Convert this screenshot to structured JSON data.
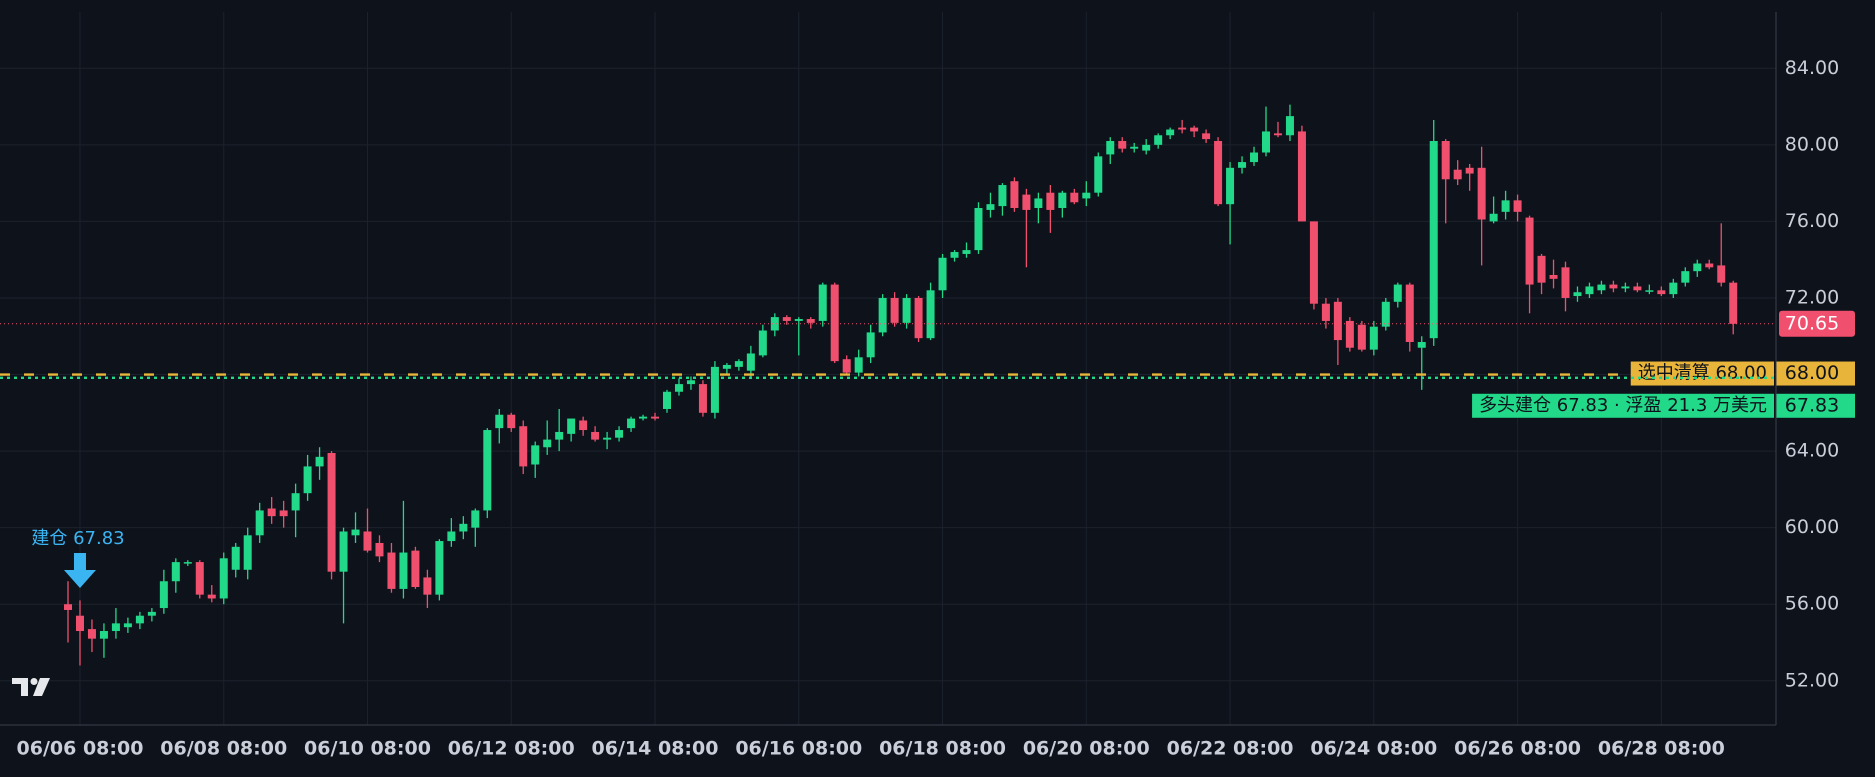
{
  "chart_data": {
    "type": "candlestick",
    "up_color": "#22d98a",
    "down_color": "#f0506e",
    "grid": true,
    "ylim": [
      49.69,
      86.94
    ],
    "yticks": [
      {
        "value": 52,
        "label": "52.00"
      },
      {
        "value": 56,
        "label": "56.00"
      },
      {
        "value": 60,
        "label": "60.00"
      },
      {
        "value": 64,
        "label": "64.00"
      },
      {
        "value": 68,
        "label": "68.00"
      },
      {
        "value": 72,
        "label": "72.00"
      },
      {
        "value": 76,
        "label": "76.00"
      },
      {
        "value": 80,
        "label": "80.00"
      },
      {
        "value": 84,
        "label": "84.00"
      }
    ],
    "categories": [
      null,
      "06/06 08:00",
      null,
      null,
      null,
      null,
      null,
      null,
      null,
      null,
      null,
      null,
      null,
      "06/08 08:00",
      null,
      null,
      null,
      null,
      null,
      null,
      null,
      null,
      null,
      null,
      null,
      "06/10 08:00",
      null,
      null,
      null,
      null,
      null,
      null,
      null,
      null,
      null,
      null,
      null,
      "06/12 08:00",
      null,
      null,
      null,
      null,
      null,
      null,
      null,
      null,
      null,
      null,
      null,
      "06/14 08:00",
      null,
      null,
      null,
      null,
      null,
      null,
      null,
      null,
      null,
      null,
      null,
      "06/16 08:00",
      null,
      null,
      null,
      null,
      null,
      null,
      null,
      null,
      null,
      null,
      null,
      "06/18 08:00",
      null,
      null,
      null,
      null,
      null,
      null,
      null,
      null,
      null,
      null,
      null,
      "06/20 08:00",
      null,
      null,
      null,
      null,
      null,
      null,
      null,
      null,
      null,
      null,
      null,
      "06/22 08:00",
      null,
      null,
      null,
      null,
      null,
      null,
      null,
      null,
      null,
      null,
      null,
      "06/24 08:00",
      null,
      null,
      null,
      null,
      null,
      null,
      null,
      null,
      null,
      null,
      null,
      "06/26 08:00",
      null,
      null,
      null,
      null,
      null,
      null,
      null,
      null,
      null,
      null,
      null,
      "06/28 08:00",
      null,
      null,
      null,
      null,
      null,
      null
    ],
    "ohlc": [
      [
        56.0,
        57.2,
        54.0,
        55.7
      ],
      [
        55.4,
        56.2,
        52.8,
        54.6
      ],
      [
        54.7,
        55.2,
        53.5,
        54.2
      ],
      [
        54.2,
        55.0,
        53.2,
        54.6
      ],
      [
        54.6,
        55.8,
        54.2,
        55.0
      ],
      [
        54.8,
        55.3,
        54.5,
        55.0
      ],
      [
        55.0,
        55.6,
        54.7,
        55.4
      ],
      [
        55.4,
        55.8,
        55.1,
        55.6
      ],
      [
        55.8,
        57.8,
        55.5,
        57.2
      ],
      [
        57.2,
        58.4,
        56.6,
        58.2
      ],
      [
        58.2,
        58.3,
        58.0,
        58.2
      ],
      [
        58.2,
        58.3,
        56.3,
        56.5
      ],
      [
        56.5,
        57.0,
        56.1,
        56.3
      ],
      [
        56.3,
        58.7,
        56.0,
        58.4
      ],
      [
        57.8,
        59.2,
        57.4,
        59.0
      ],
      [
        57.8,
        60.0,
        57.3,
        59.6
      ],
      [
        59.6,
        61.3,
        59.2,
        60.9
      ],
      [
        61.0,
        61.6,
        60.2,
        60.6
      ],
      [
        60.9,
        61.4,
        60.0,
        60.6
      ],
      [
        60.9,
        62.3,
        59.5,
        61.8
      ],
      [
        61.8,
        63.8,
        61.4,
        63.2
      ],
      [
        63.2,
        64.2,
        62.5,
        63.7
      ],
      [
        63.9,
        64.0,
        57.3,
        57.7
      ],
      [
        57.7,
        60.0,
        55.0,
        59.8
      ],
      [
        59.6,
        60.8,
        59.2,
        59.9
      ],
      [
        59.8,
        61.0,
        58.7,
        58.8
      ],
      [
        59.2,
        59.6,
        58.2,
        58.5
      ],
      [
        58.7,
        59.2,
        56.6,
        56.8
      ],
      [
        56.8,
        61.4,
        56.3,
        58.7
      ],
      [
        58.8,
        59.0,
        56.8,
        56.9
      ],
      [
        57.4,
        57.8,
        55.8,
        56.5
      ],
      [
        56.5,
        59.4,
        56.2,
        59.3
      ],
      [
        59.3,
        60.5,
        59.0,
        59.8
      ],
      [
        59.8,
        60.6,
        59.4,
        60.2
      ],
      [
        60.0,
        61.0,
        59.0,
        60.9
      ],
      [
        60.9,
        65.2,
        60.5,
        65.1
      ],
      [
        65.2,
        66.2,
        64.4,
        65.9
      ],
      [
        65.9,
        66.0,
        65.0,
        65.2
      ],
      [
        65.3,
        65.6,
        62.8,
        63.2
      ],
      [
        63.3,
        64.5,
        62.6,
        64.3
      ],
      [
        64.2,
        65.6,
        63.8,
        64.6
      ],
      [
        64.6,
        66.2,
        64.0,
        65.0
      ],
      [
        64.9,
        65.7,
        64.5,
        65.7
      ],
      [
        65.6,
        65.8,
        64.8,
        65.1
      ],
      [
        65.0,
        65.3,
        64.5,
        64.6
      ],
      [
        64.6,
        65.0,
        64.1,
        64.7
      ],
      [
        64.7,
        65.3,
        64.5,
        65.1
      ],
      [
        65.2,
        65.8,
        65.0,
        65.7
      ],
      [
        65.7,
        65.9,
        65.6,
        65.8
      ],
      [
        65.8,
        66.0,
        65.6,
        65.7
      ],
      [
        66.2,
        67.2,
        66.0,
        67.1
      ],
      [
        67.1,
        67.8,
        66.9,
        67.5
      ],
      [
        67.5,
        67.9,
        67.2,
        67.7
      ],
      [
        67.5,
        67.7,
        65.8,
        66.0
      ],
      [
        66.0,
        68.7,
        65.7,
        68.4
      ],
      [
        68.3,
        68.6,
        68.0,
        68.5
      ],
      [
        68.4,
        68.8,
        68.2,
        68.7
      ],
      [
        68.2,
        69.5,
        67.8,
        69.1
      ],
      [
        69.0,
        70.6,
        68.9,
        70.3
      ],
      [
        70.3,
        71.2,
        70.0,
        71.0
      ],
      [
        71.0,
        71.1,
        70.6,
        70.8
      ],
      [
        70.8,
        71.0,
        69.0,
        70.9
      ],
      [
        70.9,
        71.0,
        70.4,
        70.7
      ],
      [
        70.8,
        72.8,
        70.5,
        72.7
      ],
      [
        72.7,
        72.8,
        68.6,
        68.7
      ],
      [
        68.8,
        69.0,
        68.0,
        68.1
      ],
      [
        68.1,
        69.3,
        67.9,
        68.9
      ],
      [
        68.9,
        70.6,
        68.6,
        70.2
      ],
      [
        70.2,
        72.2,
        70.0,
        72.0
      ],
      [
        72.0,
        72.3,
        70.5,
        70.7
      ],
      [
        70.7,
        72.2,
        70.4,
        72.0
      ],
      [
        72.0,
        72.1,
        69.7,
        69.9
      ],
      [
        69.9,
        72.8,
        69.8,
        72.4
      ],
      [
        72.4,
        74.3,
        72.0,
        74.1
      ],
      [
        74.1,
        74.5,
        73.9,
        74.4
      ],
      [
        74.3,
        74.9,
        74.1,
        74.5
      ],
      [
        74.5,
        77.0,
        74.3,
        76.7
      ],
      [
        76.6,
        77.5,
        76.2,
        76.9
      ],
      [
        76.8,
        78.0,
        76.3,
        77.9
      ],
      [
        78.1,
        78.3,
        76.5,
        76.7
      ],
      [
        77.4,
        77.7,
        73.6,
        76.6
      ],
      [
        76.7,
        77.5,
        75.9,
        77.2
      ],
      [
        77.5,
        77.9,
        75.4,
        76.6
      ],
      [
        76.7,
        77.6,
        76.2,
        77.5
      ],
      [
        77.5,
        77.7,
        76.9,
        77.0
      ],
      [
        77.2,
        78.1,
        76.8,
        77.5
      ],
      [
        77.5,
        79.6,
        77.3,
        79.4
      ],
      [
        79.5,
        80.4,
        79.0,
        80.2
      ],
      [
        80.2,
        80.4,
        79.6,
        79.8
      ],
      [
        79.8,
        80.1,
        79.6,
        79.9
      ],
      [
        79.7,
        80.3,
        79.5,
        80.0
      ],
      [
        80.0,
        80.6,
        79.8,
        80.5
      ],
      [
        80.5,
        80.9,
        80.3,
        80.8
      ],
      [
        80.9,
        81.3,
        80.6,
        80.8
      ],
      [
        80.9,
        81.0,
        80.4,
        80.7
      ],
      [
        80.6,
        80.8,
        80.1,
        80.3
      ],
      [
        80.2,
        80.4,
        76.8,
        76.9
      ],
      [
        76.9,
        79.1,
        74.8,
        78.8
      ],
      [
        78.8,
        79.4,
        78.5,
        79.1
      ],
      [
        79.1,
        79.9,
        78.9,
        79.6
      ],
      [
        79.6,
        82.0,
        79.4,
        80.7
      ],
      [
        80.6,
        81.2,
        80.4,
        80.5
      ],
      [
        80.5,
        82.1,
        80.2,
        81.5
      ],
      [
        80.7,
        81.0,
        76.0,
        76.0
      ],
      [
        76.0,
        76.0,
        71.4,
        71.7
      ],
      [
        71.7,
        72.0,
        70.4,
        70.8
      ],
      [
        71.8,
        72.0,
        68.5,
        69.8
      ],
      [
        70.8,
        71.0,
        69.2,
        69.4
      ],
      [
        70.6,
        70.8,
        69.2,
        69.3
      ],
      [
        69.3,
        70.8,
        69.0,
        70.5
      ],
      [
        70.5,
        72.0,
        70.3,
        71.8
      ],
      [
        71.8,
        72.8,
        71.5,
        72.7
      ],
      [
        72.7,
        72.8,
        69.2,
        69.7
      ],
      [
        69.4,
        70.0,
        67.2,
        69.7
      ],
      [
        69.9,
        81.3,
        69.5,
        80.2
      ],
      [
        80.2,
        80.3,
        75.9,
        78.2
      ],
      [
        78.7,
        79.2,
        77.9,
        78.2
      ],
      [
        78.8,
        79.0,
        77.6,
        78.5
      ],
      [
        78.8,
        79.9,
        73.7,
        76.1
      ],
      [
        76.0,
        77.3,
        75.9,
        76.4
      ],
      [
        76.5,
        77.6,
        76.1,
        77.1
      ],
      [
        77.1,
        77.4,
        76.0,
        76.5
      ],
      [
        76.2,
        76.3,
        71.2,
        72.7
      ],
      [
        74.2,
        74.3,
        72.2,
        72.8
      ],
      [
        73.2,
        74.0,
        72.5,
        73.0
      ],
      [
        73.6,
        73.9,
        71.3,
        72.0
      ],
      [
        72.1,
        72.6,
        71.8,
        72.3
      ],
      [
        72.2,
        72.8,
        72.0,
        72.6
      ],
      [
        72.4,
        72.9,
        72.2,
        72.7
      ],
      [
        72.7,
        72.9,
        72.3,
        72.5
      ],
      [
        72.5,
        72.8,
        72.3,
        72.6
      ],
      [
        72.6,
        72.8,
        72.3,
        72.4
      ],
      [
        72.4,
        72.7,
        72.2,
        72.4
      ],
      [
        72.4,
        72.6,
        72.1,
        72.2
      ],
      [
        72.2,
        73.0,
        72.0,
        72.8
      ],
      [
        72.8,
        73.6,
        72.6,
        73.4
      ],
      [
        73.4,
        74.0,
        73.1,
        73.8
      ],
      [
        73.8,
        74.0,
        73.5,
        73.6
      ],
      [
        73.7,
        75.9,
        72.6,
        72.8
      ],
      [
        72.8,
        72.9,
        70.1,
        70.65
      ]
    ],
    "last_price": {
      "value": 70.65,
      "label": "70.65",
      "color": "#f0506e"
    },
    "levels": [
      {
        "value": 68,
        "label": "68.00",
        "tag": "选中清算 68.00",
        "color": "#e8b53a"
      },
      {
        "value": 67.83,
        "label": "67.83",
        "tag": "多头建仓 67.83 · 浮盈 21.3 万美元",
        "color": "#22d98a"
      }
    ],
    "annotation": {
      "text": "建仓 67.83",
      "color": "#3bb4f2"
    }
  }
}
